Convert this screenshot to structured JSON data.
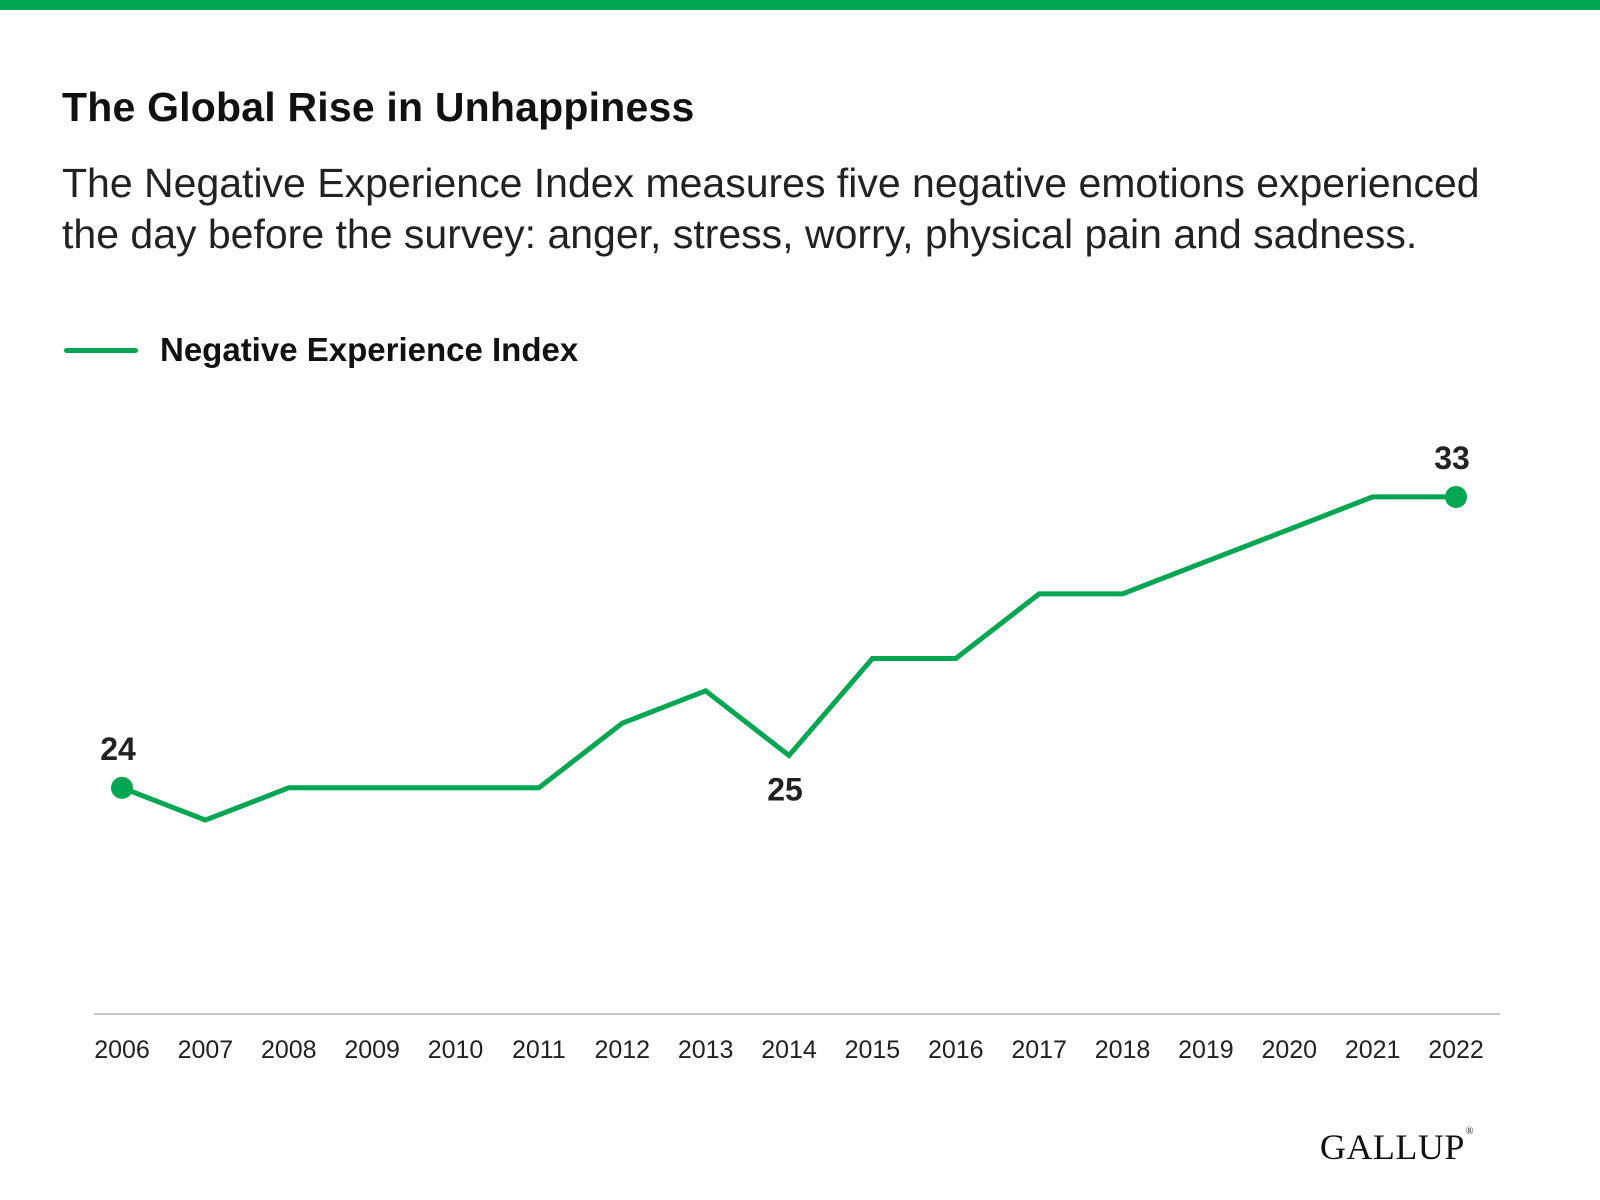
{
  "accent_color": "#00A651",
  "header": {
    "title": "The Global Rise in Unhappiness",
    "subtitle": "The Negative Experience Index measures five negative emotions experienced the day before the survey: anger, stress, worry, physical pain and sadness."
  },
  "legend": {
    "label": "Negative Experience Index",
    "placement": "top-left"
  },
  "chart_data": {
    "type": "line",
    "title": "The Global Rise in Unhappiness",
    "xlabel": "",
    "ylabel": "",
    "grid": false,
    "x": [
      "2006",
      "2007",
      "2008",
      "2009",
      "2010",
      "2011",
      "2012",
      "2013",
      "2014",
      "2015",
      "2016",
      "2017",
      "2018",
      "2019",
      "2020",
      "2021",
      "2022"
    ],
    "series": [
      {
        "name": "Negative Experience Index",
        "color": "#00A651",
        "values": [
          24,
          23,
          24,
          24,
          24,
          24,
          26,
          27,
          25,
          28,
          28,
          30,
          30,
          31,
          32,
          33,
          33
        ]
      }
    ],
    "ylim": [
      17,
      36
    ],
    "annotations": [
      {
        "x": "2006",
        "value": "24",
        "position": "above"
      },
      {
        "x": "2014",
        "value": "25",
        "position": "below"
      },
      {
        "x": "2022",
        "value": "33",
        "position": "above"
      }
    ],
    "endpoint_markers": [
      "2006",
      "2022"
    ]
  },
  "footer": {
    "logo_text": "GALLUP",
    "logo_mark": "®"
  }
}
